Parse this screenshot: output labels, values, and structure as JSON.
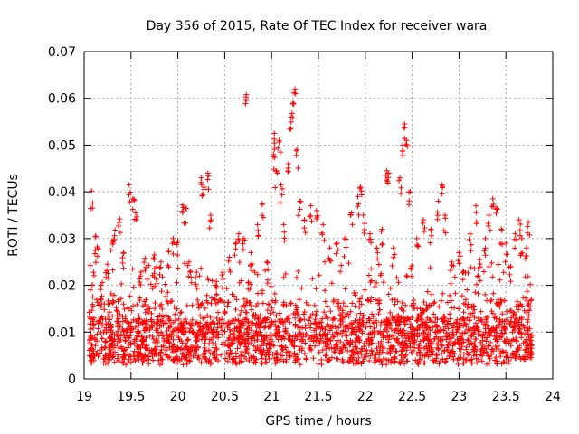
{
  "chart_data": {
    "type": "scatter",
    "title": "Day 356 of 2015, Rate Of TEC Index for receiver wara",
    "xlabel": "GPS time / hours",
    "ylabel": "ROTI / TECUs",
    "xlim": [
      19,
      24
    ],
    "ylim": [
      0,
      0.07
    ],
    "xticks": [
      19,
      19.5,
      20,
      20.5,
      21,
      21.5,
      22,
      22.5,
      23,
      23.5,
      24
    ],
    "xtick_labels": [
      "19",
      "19.5",
      "20",
      "20.5",
      "21",
      "21.5",
      "22",
      "22.5",
      "23",
      "23.5",
      "24"
    ],
    "yticks": [
      0,
      0.01,
      0.02,
      0.03,
      0.04,
      0.05,
      0.06,
      0.07
    ],
    "ytick_labels": [
      "0",
      "0.01",
      "0.02",
      "0.03",
      "0.04",
      "0.05",
      "0.06",
      "0.07"
    ],
    "grid": true,
    "marker": "+",
    "color": "#ff0000",
    "series": [
      {
        "name": "ROTI",
        "points": [
          [
            19.08,
            0.0402
          ],
          [
            19.1,
            0.0228
          ],
          [
            19.12,
            0.0305
          ],
          [
            19.14,
            0.0282
          ],
          [
            19.18,
            0.02
          ],
          [
            19.25,
            0.0245
          ],
          [
            19.3,
            0.0295
          ],
          [
            19.33,
            0.0318
          ],
          [
            19.38,
            0.0342
          ],
          [
            19.42,
            0.027
          ],
          [
            19.48,
            0.0415
          ],
          [
            19.52,
            0.0385
          ],
          [
            19.55,
            0.0355
          ],
          [
            19.6,
            0.022
          ],
          [
            19.65,
            0.0258
          ],
          [
            19.75,
            0.0265
          ],
          [
            19.82,
            0.025
          ],
          [
            19.9,
            0.0275
          ],
          [
            19.95,
            0.03
          ],
          [
            20.0,
            0.0295
          ],
          [
            20.05,
            0.0372
          ],
          [
            20.08,
            0.0365
          ],
          [
            20.12,
            0.025
          ],
          [
            20.2,
            0.0228
          ],
          [
            20.25,
            0.043
          ],
          [
            20.28,
            0.041
          ],
          [
            20.32,
            0.044
          ],
          [
            20.35,
            0.035
          ],
          [
            20.4,
            0.02
          ],
          [
            20.48,
            0.0228
          ],
          [
            20.55,
            0.026
          ],
          [
            20.62,
            0.029
          ],
          [
            20.65,
            0.031
          ],
          [
            20.7,
            0.03
          ],
          [
            20.73,
            0.0608
          ],
          [
            20.78,
            0.027
          ],
          [
            20.85,
            0.033
          ],
          [
            20.9,
            0.0375
          ],
          [
            20.95,
            0.025
          ],
          [
            21.02,
            0.048
          ],
          [
            21.03,
            0.0525
          ],
          [
            21.05,
            0.0445
          ],
          [
            21.08,
            0.051
          ],
          [
            21.1,
            0.0415
          ],
          [
            21.13,
            0.033
          ],
          [
            21.18,
            0.046
          ],
          [
            21.21,
            0.056
          ],
          [
            21.23,
            0.059
          ],
          [
            21.25,
            0.062
          ],
          [
            21.27,
            0.049
          ],
          [
            21.3,
            0.038
          ],
          [
            21.35,
            0.034
          ],
          [
            21.42,
            0.037
          ],
          [
            21.48,
            0.036
          ],
          [
            21.55,
            0.033
          ],
          [
            21.62,
            0.028
          ],
          [
            21.7,
            0.029
          ],
          [
            21.78,
            0.03
          ],
          [
            21.85,
            0.0355
          ],
          [
            21.92,
            0.039
          ],
          [
            21.95,
            0.041
          ],
          [
            21.98,
            0.035
          ],
          [
            22.05,
            0.031
          ],
          [
            22.12,
            0.028
          ],
          [
            22.18,
            0.032
          ],
          [
            22.23,
            0.0445
          ],
          [
            22.25,
            0.044
          ],
          [
            22.3,
            0.028
          ],
          [
            22.37,
            0.043
          ],
          [
            22.4,
            0.05
          ],
          [
            22.42,
            0.0545
          ],
          [
            22.44,
            0.051
          ],
          [
            22.48,
            0.04
          ],
          [
            22.55,
            0.03
          ],
          [
            22.62,
            0.034
          ],
          [
            22.7,
            0.032
          ],
          [
            22.78,
            0.038
          ],
          [
            22.82,
            0.0415
          ],
          [
            22.85,
            0.035
          ],
          [
            22.92,
            0.025
          ],
          [
            23.0,
            0.027
          ],
          [
            23.05,
            0.023
          ],
          [
            23.12,
            0.031
          ],
          [
            23.18,
            0.037
          ],
          [
            23.22,
            0.0255
          ],
          [
            23.28,
            0.03
          ],
          [
            23.32,
            0.035
          ],
          [
            23.36,
            0.0385
          ],
          [
            23.4,
            0.0365
          ],
          [
            23.45,
            0.032
          ],
          [
            23.5,
            0.029
          ],
          [
            23.55,
            0.024
          ],
          [
            23.6,
            0.031
          ],
          [
            23.64,
            0.034
          ],
          [
            23.67,
            0.03
          ],
          [
            23.72,
            0.028
          ],
          [
            23.74,
            0.0335
          ]
        ]
      }
    ],
    "dense_band": {
      "description": "continuous low-level ROTI background",
      "x_range": [
        19.05,
        23.78
      ],
      "y_range": [
        0.002,
        0.024
      ],
      "typical_y": 0.008
    }
  }
}
